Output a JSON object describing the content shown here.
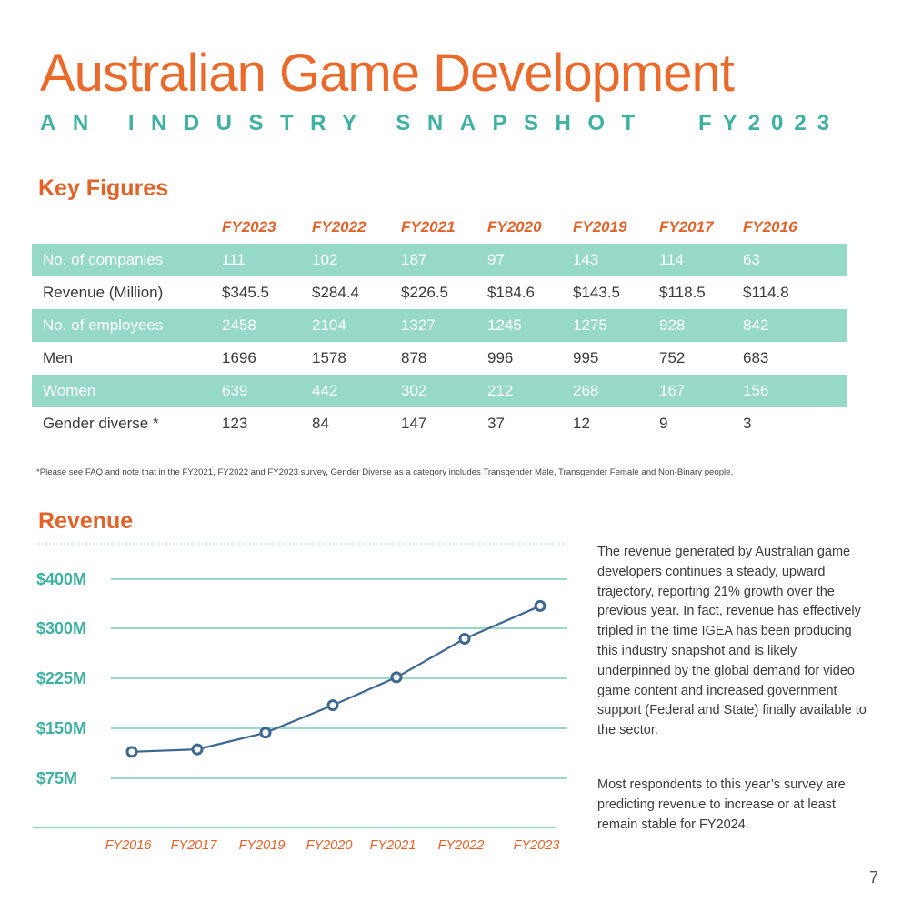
{
  "header": {
    "title": "Australian Game Development",
    "subtitle": "AN INDUSTRY SNAPSHOT",
    "subtitle_year": "FY2023"
  },
  "key_figures": {
    "heading": "Key Figures",
    "columns": [
      "FY2023",
      "FY2022",
      "FY2021",
      "FY2020",
      "FY2019",
      "FY2017",
      "FY2016"
    ],
    "rows": [
      {
        "label": "No. of companies",
        "values": [
          "111",
          "102",
          "187",
          "97",
          "143",
          "114",
          "63"
        ]
      },
      {
        "label": "Revenue (Million)",
        "values": [
          "$345.5",
          "$284.4",
          "$226.5",
          "$184.6",
          "$143.5",
          "$118.5",
          "$114.8"
        ]
      },
      {
        "label": "No. of employees",
        "values": [
          "2458",
          "2104",
          "1327",
          "1245",
          "1275",
          "928",
          "842"
        ]
      },
      {
        "label": "Men",
        "values": [
          "1696",
          "1578",
          "878",
          "996",
          "995",
          "752",
          "683"
        ]
      },
      {
        "label": "Women",
        "values": [
          "639",
          "442",
          "302",
          "212",
          "268",
          "167",
          "156"
        ]
      },
      {
        "label": "Gender diverse *",
        "values": [
          "123",
          "84",
          "147",
          "37",
          "12",
          "9",
          "3"
        ]
      }
    ],
    "footnote": "*Please see FAQ and note that in the FY2021, FY2022 and FY2023 survey, Gender Diverse as a category includes Transgender Male, Transgender Female and Non-Binary people."
  },
  "revenue": {
    "heading": "Revenue",
    "paragraphs": [
      "The revenue generated by Australian game developers continues a steady, upward trajectory, reporting 21% growth over the previous year.  In fact, revenue has effectively tripled in the time IGEA has been producing this industry snapshot and is likely underpinned by the global demand for video game content and increased government support (Federal and State) finally available to the sector.",
      "Most respondents to this year’s survey are predicting revenue to increase or at least remain stable for FY2024."
    ]
  },
  "chart_data": {
    "type": "line",
    "categories": [
      "FY2016",
      "FY2017",
      "FY2019",
      "FY2020",
      "FY2021",
      "FY2022",
      "FY2023"
    ],
    "series": [
      {
        "values": [
          114.8,
          118.5,
          143.5,
          184.6,
          226.5,
          284.4,
          345.5
        ]
      }
    ],
    "y_ticks": [
      75,
      150,
      225,
      300,
      400
    ],
    "y_tick_labels": [
      "$75M",
      "$150M",
      "$225M",
      "$300M",
      "$400M"
    ],
    "title": "",
    "xlabel": "",
    "ylabel": "",
    "grid": true,
    "colors": {
      "line": "#3e6891",
      "grid": "#9ad8ca",
      "tick_label": "#3fb1a1",
      "category_label": "#e2632a"
    }
  },
  "page_number": "7"
}
